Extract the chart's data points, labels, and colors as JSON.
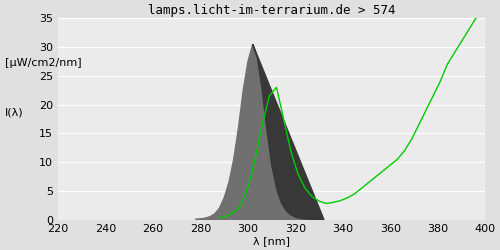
{
  "title": "lamps.licht-im-terrarium.de > 574",
  "xlabel": "λ [nm]",
  "ylabel_top": "[μW/cm2/nm]",
  "ylabel_bottom": "I(λ)",
  "xlim": [
    220,
    400
  ],
  "ylim": [
    0,
    35
  ],
  "yticks": [
    0,
    5,
    10,
    15,
    20,
    25,
    30,
    35
  ],
  "xticks": [
    220,
    240,
    260,
    280,
    300,
    320,
    340,
    360,
    380,
    400
  ],
  "bg_color": "#e0e0e0",
  "plot_bg_color": "#ebebeb",
  "fill_color_light": "#707070",
  "fill_color_dark": "#383838",
  "line_color": "#00cc00",
  "spectrum_x": [
    278,
    280,
    282,
    284,
    286,
    288,
    290,
    292,
    294,
    296,
    298,
    300,
    302,
    304,
    306,
    308,
    310,
    312,
    314,
    316,
    318,
    320,
    322,
    324,
    326,
    328,
    330,
    332
  ],
  "spectrum_y": [
    0.05,
    0.12,
    0.25,
    0.5,
    1.0,
    2.0,
    3.8,
    6.5,
    10.5,
    16.0,
    22.5,
    27.5,
    30.5,
    28.0,
    22.5,
    15.5,
    9.5,
    5.5,
    3.0,
    1.6,
    0.85,
    0.45,
    0.22,
    0.12,
    0.06,
    0.03,
    0.01,
    0.0
  ],
  "green_x": [
    288,
    291,
    294,
    297,
    300,
    303,
    306,
    309,
    312,
    315,
    318,
    321,
    324,
    327,
    330,
    333,
    336,
    339,
    342,
    345,
    348,
    351,
    354,
    357,
    360,
    363,
    366,
    369,
    372,
    375,
    378,
    381,
    384,
    387,
    390,
    393,
    396,
    399,
    400
  ],
  "green_y": [
    0.3,
    0.6,
    1.2,
    2.5,
    5.5,
    10.5,
    16.5,
    21.5,
    23.0,
    17.5,
    12.0,
    8.0,
    5.5,
    4.0,
    3.2,
    2.8,
    3.0,
    3.3,
    3.8,
    4.5,
    5.5,
    6.5,
    7.5,
    8.5,
    9.5,
    10.5,
    12.0,
    14.0,
    16.5,
    19.0,
    21.5,
    24.0,
    27.0,
    29.0,
    31.0,
    33.0,
    35.0,
    36.0,
    36.5
  ],
  "title_fontsize": 9,
  "tick_fontsize": 8,
  "label_fontsize": 8
}
